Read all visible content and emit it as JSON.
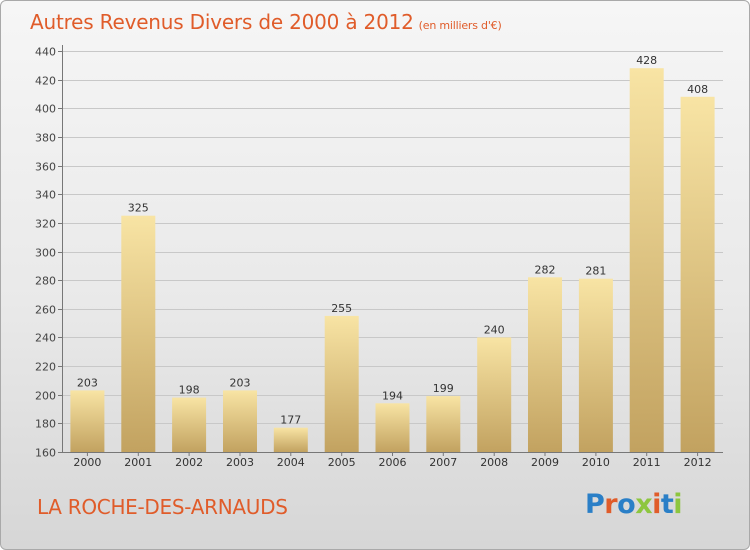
{
  "header": {
    "title": "Autres Revenus Divers de 2000 à 2012",
    "unit": "(en milliers d'€)"
  },
  "footer": {
    "city": "LA ROCHE-DES-ARNAUDS",
    "brand": "Proxiti"
  },
  "colors": {
    "title": "#e05c2a",
    "bar_light": "#f8e4a4",
    "bar_dark": "#c2a260",
    "grid": "#c8c8c8",
    "brand_letters": [
      "#2a7fc7",
      "#e05c2a",
      "#2a7fc7",
      "#8dc63f",
      "#e05c2a",
      "#2a7fc7",
      "#8dc63f"
    ]
  },
  "chart_data": {
    "type": "bar",
    "title": "Autres Revenus Divers de 2000 à 2012",
    "subtitle": "(en milliers d'€)",
    "xlabel": "",
    "ylabel": "",
    "categories": [
      "2000",
      "2001",
      "2002",
      "2003",
      "2004",
      "2005",
      "2006",
      "2007",
      "2008",
      "2009",
      "2010",
      "2011",
      "2012"
    ],
    "values": [
      203,
      325,
      198,
      203,
      177,
      255,
      194,
      199,
      240,
      282,
      281,
      428,
      408
    ],
    "value_labels": [
      "203",
      "325",
      "198",
      "203",
      "177",
      "255",
      "194",
      "199",
      "240",
      "282",
      "281",
      "428",
      "408"
    ],
    "ylim": [
      160,
      440
    ],
    "yticks": [
      160,
      180,
      200,
      220,
      240,
      260,
      280,
      300,
      320,
      340,
      360,
      380,
      400,
      420,
      440
    ],
    "ytick_labels": [
      "160",
      "180",
      "200",
      "220",
      "240",
      "260",
      "280",
      "300",
      "320",
      "340",
      "360",
      "380",
      "400",
      "420",
      "440"
    ],
    "grid": true,
    "legend": "none"
  }
}
